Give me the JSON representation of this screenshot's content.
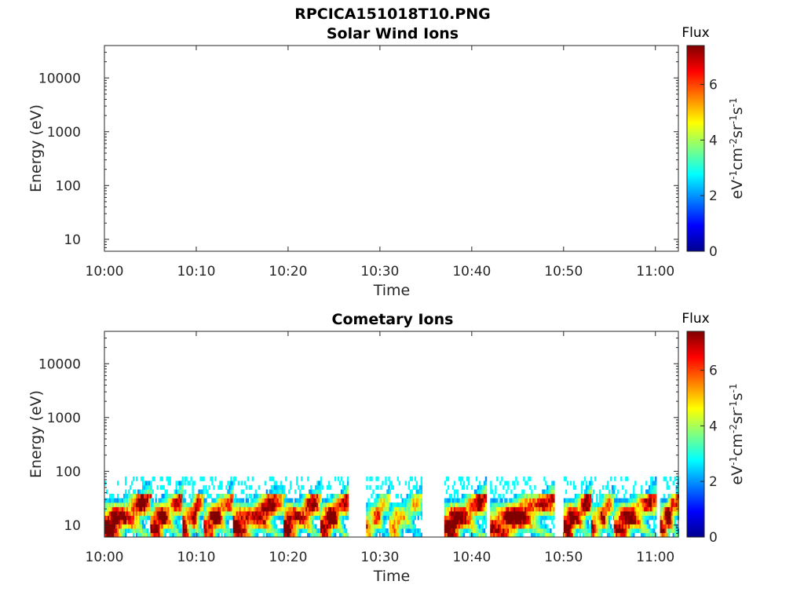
{
  "figure_title": "RPCICA151018T10.PNG",
  "chart_data": [
    {
      "type": "heatmap",
      "title": "Solar Wind Ions",
      "xlabel": "Time",
      "ylabel": "Energy (eV)",
      "x_ticks": [
        "10:00",
        "10:10",
        "10:20",
        "10:30",
        "10:40",
        "10:50",
        "11:00"
      ],
      "x_range_minutes": [
        0,
        62.5
      ],
      "y_scale": "log",
      "y_range": [
        6,
        40000
      ],
      "y_ticks": [
        "10",
        "100",
        "1000",
        "10000"
      ],
      "colorbar": {
        "title": "Flux",
        "label": "eV-1cm-2sr-1s-1",
        "range": [
          0,
          7.4
        ],
        "ticks": [
          "0",
          "2",
          "4",
          "6"
        ],
        "colormap": "jet"
      },
      "segments": []
    },
    {
      "type": "heatmap",
      "title": "Cometary Ions",
      "xlabel": "Time",
      "ylabel": "Energy (eV)",
      "x_ticks": [
        "10:00",
        "10:10",
        "10:20",
        "10:30",
        "10:40",
        "10:50",
        "11:00"
      ],
      "x_range_minutes": [
        0,
        62.5
      ],
      "y_scale": "log",
      "y_range": [
        6,
        40000
      ],
      "y_ticks": [
        "10",
        "100",
        "1000",
        "10000"
      ],
      "colorbar": {
        "title": "Flux",
        "label": "eV-1cm-2sr-1s-1",
        "range": [
          0,
          7.4
        ],
        "ticks": [
          "0",
          "2",
          "4",
          "6"
        ],
        "colormap": "jet"
      },
      "energy_max_ev": 80,
      "segments": [
        {
          "start_min": 0,
          "end_min": 5.0,
          "peak_flux": 6.9
        },
        {
          "start_min": 5.0,
          "end_min": 8.5,
          "peak_flux": 6.6
        },
        {
          "start_min": 8.5,
          "end_min": 10.8,
          "peak_flux": 6.4
        },
        {
          "start_min": 10.8,
          "end_min": 14.0,
          "peak_flux": 6.5
        },
        {
          "start_min": 14.0,
          "end_min": 19.5,
          "peak_flux": 6.8
        },
        {
          "start_min": 19.5,
          "end_min": 23.5,
          "peak_flux": 6.6
        },
        {
          "start_min": 23.5,
          "end_min": 26.5,
          "peak_flux": 7.0
        },
        {
          "start_min": 28.5,
          "end_min": 31.0,
          "peak_flux": 5.2
        },
        {
          "start_min": 31.0,
          "end_min": 34.5,
          "peak_flux": 4.6
        },
        {
          "start_min": 37.0,
          "end_min": 41.5,
          "peak_flux": 6.9
        },
        {
          "start_min": 42.0,
          "end_min": 49.0,
          "peak_flux": 6.9
        },
        {
          "start_min": 50.0,
          "end_min": 53.0,
          "peak_flux": 7.0
        },
        {
          "start_min": 53.0,
          "end_min": 55.5,
          "peak_flux": 5.8
        },
        {
          "start_min": 55.5,
          "end_min": 60.0,
          "peak_flux": 6.6
        },
        {
          "start_min": 60.5,
          "end_min": 62.5,
          "peak_flux": 6.9
        }
      ]
    }
  ]
}
